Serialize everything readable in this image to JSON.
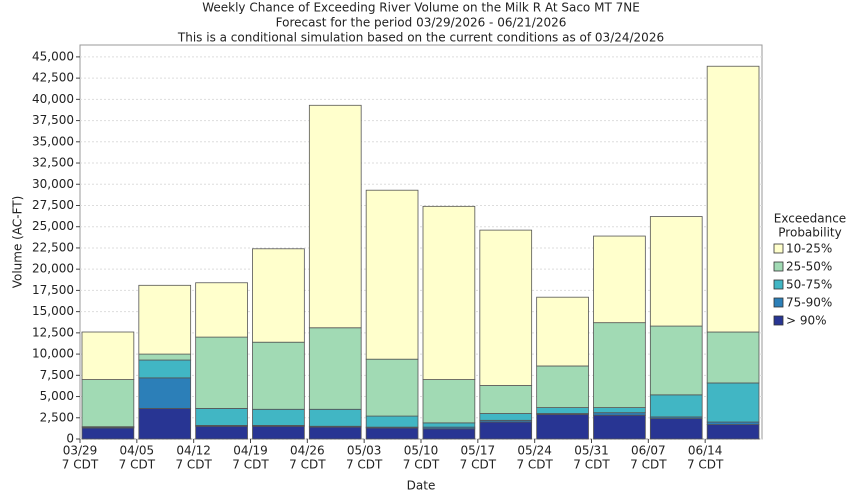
{
  "chart_data": {
    "type": "stacked_bar",
    "title": [
      "Weekly Chance of Exceeding River Volume on the Milk R At Saco MT 7NE",
      "Forecast for the period 03/29/2026 - 06/21/2026",
      "This is a conditional simulation based on the current conditions as of 03/24/2026"
    ],
    "x_label": "Date",
    "y_label": "Volume (AC-FT)",
    "categories": [
      [
        "03/29",
        "7 CDT"
      ],
      [
        "04/05",
        "7 CDT"
      ],
      [
        "04/12",
        "7 CDT"
      ],
      [
        "04/19",
        "7 CDT"
      ],
      [
        "04/26",
        "7 CDT"
      ],
      [
        "05/03",
        "7 CDT"
      ],
      [
        "05/10",
        "7 CDT"
      ],
      [
        "05/17",
        "7 CDT"
      ],
      [
        "05/24",
        "7 CDT"
      ],
      [
        "05/31",
        "7 CDT"
      ],
      [
        "06/07",
        "7 CDT"
      ],
      [
        "06/14",
        "7 CDT"
      ]
    ],
    "series": [
      {
        "name": "> 90%",
        "color": "#283593",
        "values": [
          1300,
          3600,
          1500,
          1500,
          1400,
          1300,
          1200,
          2000,
          2900,
          2800,
          2400,
          1700
        ]
      },
      {
        "name": "75-90%",
        "color": "#2c7fb8",
        "values": [
          100,
          3600,
          100,
          100,
          100,
          100,
          200,
          200,
          100,
          300,
          200,
          300
        ]
      },
      {
        "name": "50-75%",
        "color": "#41b6c4",
        "values": [
          50,
          2100,
          2000,
          1900,
          2000,
          1300,
          500,
          800,
          700,
          600,
          2600,
          4600
        ]
      },
      {
        "name": "25-50%",
        "color": "#a1dab4",
        "values": [
          5550,
          700,
          8400,
          7900,
          9600,
          6700,
          5100,
          3300,
          4900,
          10000,
          8100,
          6000
        ]
      },
      {
        "name": "10-25%",
        "color": "#ffffcc",
        "values": [
          5600,
          8100,
          6400,
          11000,
          26200,
          19900,
          20400,
          18300,
          8100,
          10200,
          12900,
          31300
        ]
      }
    ],
    "legend_title": [
      "Exceedance",
      "Probability"
    ],
    "ylim": [
      0,
      46400
    ],
    "yticks": [
      0,
      {
        "value": 2500,
        "label": "2,500"
      },
      {
        "value": 5000,
        "label": "5,000"
      },
      {
        "value": 7500,
        "label": "7,500"
      },
      {
        "value": 10000,
        "label": "10,000"
      },
      {
        "value": 12500,
        "label": "12,500"
      },
      {
        "value": 15000,
        "label": "15,000"
      },
      {
        "value": 17500,
        "label": "17,500"
      },
      {
        "value": 20000,
        "label": "20,000"
      },
      {
        "value": 22500,
        "label": "22,500"
      },
      {
        "value": 25000,
        "label": "25,000"
      },
      {
        "value": 27500,
        "label": "27,500"
      },
      {
        "value": 30000,
        "label": "30,000"
      },
      {
        "value": 32500,
        "label": "32,500"
      },
      {
        "value": 35000,
        "label": "35,000"
      },
      {
        "value": 37500,
        "label": "37,500"
      },
      {
        "value": 40000,
        "label": "40,000"
      },
      {
        "value": 42500,
        "label": "42,500"
      },
      {
        "value": 45000,
        "label": "45,000"
      }
    ],
    "grid": true
  }
}
